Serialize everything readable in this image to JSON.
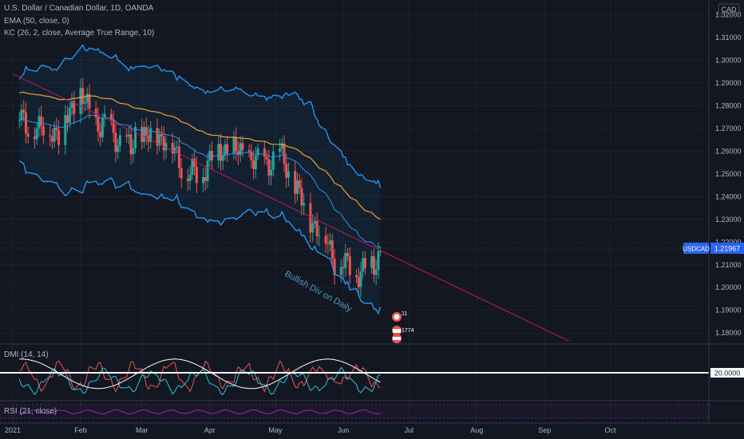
{
  "legend": {
    "title": "U.S. Dollar / Canadian Dollar, 1D, OANDA",
    "ema": "EMA (50, close, 0)",
    "kc": "KC (26, 2, close, Average True Range, 10)"
  },
  "currency": "CAD",
  "panes": {
    "dmi_label": "DMI (14, 14)",
    "dmi_level": "20.0000",
    "rsi_label": "RSI (21, close)"
  },
  "symbol_badge": {
    "symbol": "USDCAD",
    "price": "1.21967"
  },
  "annotation": "Bullish Div on Daily",
  "event_icons": [
    "11",
    "1774"
  ],
  "colors": {
    "background": "#131722",
    "up": "#26a69a",
    "down": "#ef5350",
    "ema": "#f0a232",
    "channel": "#2196f3",
    "trendline": "#c2185b",
    "rsi": "#9c27b0"
  },
  "chart_data": {
    "type": "candlestick",
    "ylim": [
      1.1755,
      1.3265
    ],
    "y_ticks": [
      "1.32000",
      "1.31000",
      "1.30000",
      "1.29000",
      "1.28000",
      "1.27000",
      "1.26000",
      "1.25000",
      "1.24000",
      "1.23000",
      "1.22000",
      "1.21000",
      "1.20000",
      "1.19000",
      "1.18000"
    ],
    "x_ticks": [
      "2021",
      "Feb",
      "Mar",
      "Apr",
      "May",
      "Jun",
      "Jul",
      "Aug",
      "Sep",
      "Oct"
    ],
    "last_price": 1.21967,
    "close_path": [
      [
        "2021-01-04",
        1.275
      ],
      [
        "2021-01-08",
        1.272
      ],
      [
        "2021-01-13",
        1.268
      ],
      [
        "2021-01-18",
        1.272
      ],
      [
        "2021-01-22",
        1.265
      ],
      [
        "2021-01-27",
        1.28
      ],
      [
        "2021-02-01",
        1.283
      ],
      [
        "2021-02-05",
        1.278
      ],
      [
        "2021-02-10",
        1.27
      ],
      [
        "2021-02-15",
        1.27
      ],
      [
        "2021-02-19",
        1.264
      ],
      [
        "2021-02-24",
        1.26
      ],
      [
        "2021-02-26",
        1.269
      ],
      [
        "2021-03-03",
        1.265
      ],
      [
        "2021-03-08",
        1.268
      ],
      [
        "2021-03-12",
        1.265
      ],
      [
        "2021-03-17",
        1.258
      ],
      [
        "2021-03-22",
        1.25
      ],
      [
        "2021-03-26",
        1.249
      ],
      [
        "2021-03-31",
        1.255
      ],
      [
        "2021-04-05",
        1.26
      ],
      [
        "2021-04-09",
        1.262
      ],
      [
        "2021-04-14",
        1.259
      ],
      [
        "2021-04-19",
        1.258
      ],
      [
        "2021-04-23",
        1.254
      ],
      [
        "2021-04-28",
        1.256
      ],
      [
        "2021-05-03",
        1.258
      ],
      [
        "2021-05-06",
        1.253
      ],
      [
        "2021-05-10",
        1.245
      ],
      [
        "2021-05-14",
        1.235
      ],
      [
        "2021-05-19",
        1.228
      ],
      [
        "2021-05-24",
        1.221
      ],
      [
        "2021-05-28",
        1.213
      ],
      [
        "2021-06-02",
        1.209
      ],
      [
        "2021-06-07",
        1.207
      ],
      [
        "2021-06-11",
        1.208
      ],
      [
        "2021-06-15",
        1.21
      ],
      [
        "2021-06-19",
        1.2196
      ]
    ],
    "trendline": {
      "from": [
        "2021-01-01",
        1.294
      ],
      "to": [
        "2021-09-12",
        1.1765
      ]
    },
    "dmi_level": 20.0
  }
}
